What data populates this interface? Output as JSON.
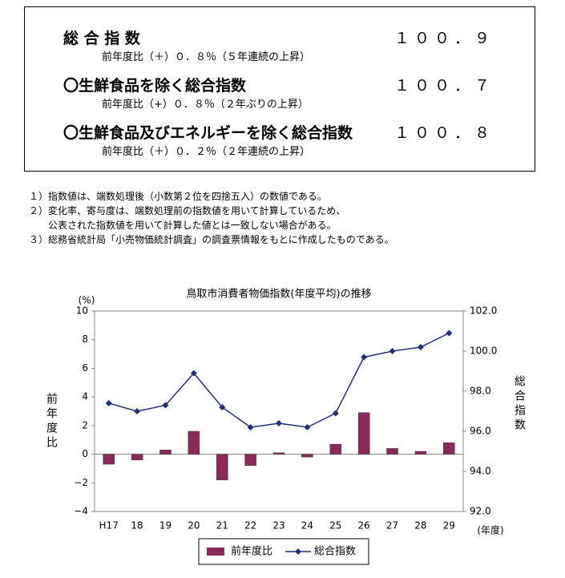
{
  "summary": [
    {
      "label": "総 合 指 数",
      "value": "１００．９",
      "note": "前年度比（＋）０．８％（５年連続の上昇）"
    },
    {
      "label": "〇生鮮食品を除く総合指数",
      "value": "１００．７",
      "note": "前年度比（+）０．８％（２年ぶりの上昇）"
    },
    {
      "label": "〇生鮮食品及びエネルギーを除く総合指数",
      "value": "１００．８",
      "note": "前年度比（＋）０．２％（２年連続の上昇）"
    }
  ],
  "notes": [
    "１）指数値は、端数処理後（小数第２位を四捨五入）の数値である。",
    "２）変化率、寄与度は、端数処理前の指数値を用いて計算しているため、",
    "公表された指数値を用いて計算した値とは一致しない場合がある。",
    "３）総務省統計局「小売物価統計調査」の調査票情報をもとに作成したものである。"
  ],
  "chart_data": {
    "type": "combo",
    "title": "鳥取市消費者物価指数(年度平均)の推移",
    "y_unit": "(%)",
    "x_unit": "(年度)",
    "ylabel": "前年度比",
    "y2label": "総合指数",
    "categories": [
      "H17",
      "18",
      "19",
      "20",
      "21",
      "22",
      "23",
      "24",
      "25",
      "26",
      "27",
      "28",
      "29"
    ],
    "series": [
      {
        "name": "前年度比",
        "type": "bar",
        "color": "#8b2a5a",
        "values": [
          -0.7,
          -0.4,
          0.3,
          1.6,
          -1.8,
          -0.8,
          0.1,
          -0.2,
          0.7,
          2.9,
          0.4,
          0.2,
          0.8
        ]
      },
      {
        "name": "総合指数",
        "type": "line",
        "axis": "y2",
        "color": "#1f2f7a",
        "values": [
          97.4,
          97.0,
          97.3,
          98.9,
          97.2,
          96.2,
          96.4,
          96.2,
          96.9,
          99.7,
          100.0,
          100.2,
          100.9
        ]
      }
    ],
    "ylim": [
      -4,
      10
    ],
    "yticks": [
      {
        "value": -4,
        "label": "−4"
      },
      {
        "value": -2,
        "label": "−2"
      },
      0,
      2,
      4,
      6,
      8,
      10
    ],
    "y2lim": [
      92,
      102
    ],
    "y2ticks": [
      {
        "value": 92,
        "label": "92.0"
      },
      {
        "value": 94,
        "label": "94.0"
      },
      {
        "value": 96,
        "label": "96.0"
      },
      {
        "value": 98,
        "label": "98.0"
      },
      {
        "value": 100,
        "label": "100.0"
      },
      {
        "value": 102,
        "label": "102.0"
      }
    ],
    "grid": false,
    "legend": "bottom"
  }
}
